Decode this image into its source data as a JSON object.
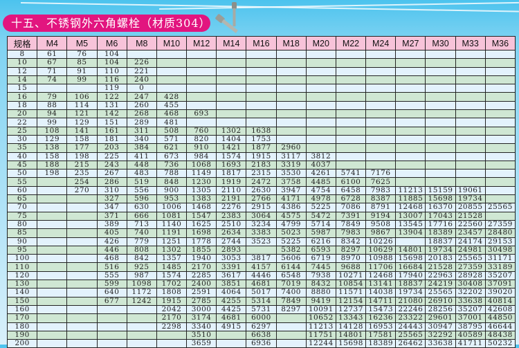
{
  "title": "十五、不锈钢外六角螺栓（材质304）",
  "colors": {
    "title_bg": "#e2157f",
    "header_bg": "#f7c3d9",
    "row_light": "#e3f2fc",
    "row_green": "#cfe7d3",
    "background": "#4cc3ee"
  },
  "table": {
    "headers": [
      "规格",
      "M4",
      "M5",
      "M6",
      "M8",
      "M10",
      "M12",
      "M14",
      "M16",
      "M18",
      "M20",
      "M22",
      "M24",
      "M27",
      "M30",
      "M33",
      "M36"
    ],
    "rows": [
      [
        "8",
        "61",
        "76",
        "104",
        "",
        "",
        "",
        "",
        "",
        "",
        "",
        "",
        "",
        "",
        "",
        "",
        ""
      ],
      [
        "10",
        "67",
        "85",
        "104",
        "226",
        "",
        "",
        "",
        "",
        "",
        "",
        "",
        "",
        "",
        "",
        "",
        ""
      ],
      [
        "12",
        "71",
        "91",
        "110",
        "221",
        "",
        "",
        "",
        "",
        "",
        "",
        "",
        "",
        "",
        "",
        "",
        ""
      ],
      [
        "14",
        "74",
        "99",
        "116",
        "240",
        "",
        "",
        "",
        "",
        "",
        "",
        "",
        "",
        "",
        "",
        "",
        ""
      ],
      [
        "15",
        "",
        "",
        "119",
        "0",
        "",
        "",
        "",
        "",
        "",
        "",
        "",
        "",
        "",
        "",
        "",
        ""
      ],
      [
        "16",
        "79",
        "106",
        "122",
        "247",
        "428",
        "",
        "",
        "",
        "",
        "",
        "",
        "",
        "",
        "",
        "",
        ""
      ],
      [
        "18",
        "88",
        "114",
        "131",
        "260",
        "455",
        "",
        "",
        "",
        "",
        "",
        "",
        "",
        "",
        "",
        "",
        ""
      ],
      [
        "20",
        "94",
        "121",
        "142",
        "268",
        "468",
        "693",
        "",
        "",
        "",
        "",
        "",
        "",
        "",
        "",
        "",
        ""
      ],
      [
        "22",
        "99",
        "129",
        "151",
        "289",
        "481",
        "",
        "",
        "",
        "",
        "",
        "",
        "",
        "",
        "",
        "",
        ""
      ],
      [
        "25",
        "108",
        "141",
        "161",
        "311",
        "508",
        "760",
        "1302",
        "1638",
        "",
        "",
        "",
        "",
        "",
        "",
        "",
        ""
      ],
      [
        "30",
        "129",
        "158",
        "181",
        "340",
        "571",
        "820",
        "1404",
        "1753",
        "",
        "",
        "",
        "",
        "",
        "",
        "",
        ""
      ],
      [
        "35",
        "138",
        "177",
        "203",
        "384",
        "621",
        "910",
        "1421",
        "1877",
        "2960",
        "",
        "",
        "",
        "",
        "",
        "",
        ""
      ],
      [
        "40",
        "158",
        "198",
        "225",
        "411",
        "673",
        "984",
        "1574",
        "1915",
        "3117",
        "3812",
        "",
        "",
        "",
        "",
        "",
        ""
      ],
      [
        "45",
        "188",
        "215",
        "243",
        "448",
        "736",
        "1068",
        "1693",
        "2183",
        "3319",
        "4037",
        "",
        "",
        "",
        "",
        "",
        ""
      ],
      [
        "50",
        "198",
        "235",
        "267",
        "483",
        "788",
        "1149",
        "1817",
        "2315",
        "3530",
        "4261",
        "5741",
        "7176",
        "",
        "",
        "",
        ""
      ],
      [
        "55",
        "",
        "254",
        "286",
        "519",
        "848",
        "1230",
        "1919",
        "2472",
        "3758",
        "4485",
        "6100",
        "7625",
        "",
        "",
        "",
        ""
      ],
      [
        "60",
        "",
        "270",
        "310",
        "556",
        "900",
        "1305",
        "2110",
        "2630",
        "3947",
        "4754",
        "6458",
        "7983",
        "11213",
        "15159",
        "19061",
        ""
      ],
      [
        "65",
        "",
        "",
        "327",
        "596",
        "953",
        "1383",
        "2191",
        "2766",
        "4171",
        "4978",
        "6728",
        "8387",
        "11885",
        "15698",
        "19734",
        ""
      ],
      [
        "70",
        "",
        "",
        "347",
        "630",
        "1006",
        "1468",
        "2276",
        "2915",
        "4386",
        "5225",
        "7086",
        "8791",
        "12468",
        "16370",
        "20855",
        "25565"
      ],
      [
        "75",
        "",
        "",
        "371",
        "666",
        "1081",
        "1547",
        "2383",
        "3064",
        "4575",
        "5472",
        "7391",
        "9194",
        "13007",
        "17043",
        "21528",
        ""
      ],
      [
        "80",
        "",
        "",
        "389",
        "713",
        "1140",
        "1625",
        "2510",
        "3234",
        "4799",
        "5714",
        "7849",
        "9508",
        "13545",
        "17716",
        "22560",
        "27359"
      ],
      [
        "85",
        "",
        "",
        "405",
        "740",
        "1191",
        "1698",
        "2634",
        "3383",
        "5023",
        "5987",
        "7983",
        "9867",
        "13904",
        "18389",
        "23457",
        "28480"
      ],
      [
        "90",
        "",
        "",
        "426",
        "779",
        "1251",
        "1778",
        "2744",
        "3523",
        "5225",
        "6216",
        "8342",
        "10226",
        "",
        "18837",
        "24174",
        "29153"
      ],
      [
        "95",
        "",
        "",
        "446",
        "808",
        "1302",
        "1855",
        "2893",
        "",
        "5382",
        "6593",
        "8297",
        "10629",
        "14801",
        "19734",
        "24981",
        "30498"
      ],
      [
        "100",
        "",
        "",
        "468",
        "842",
        "1357",
        "1940",
        "3053",
        "3817",
        "5606",
        "6719",
        "8970",
        "10988",
        "15698",
        "20183",
        "25565",
        "31171"
      ],
      [
        "110",
        "",
        "",
        "516",
        "925",
        "1485",
        "2170",
        "3391",
        "4157",
        "6144",
        "7445",
        "9688",
        "11706",
        "16684",
        "21528",
        "27359",
        "33189"
      ],
      [
        "120",
        "",
        "",
        "555",
        "987",
        "1574",
        "2285",
        "3617",
        "4446",
        "6548",
        "7938",
        "10271",
        "12468",
        "17940",
        "22963",
        "28928",
        "35207"
      ],
      [
        "130",
        "",
        "",
        "599",
        "1098",
        "1702",
        "2400",
        "3851",
        "4681",
        "7019",
        "8432",
        "10854",
        "13141",
        "18837",
        "24219",
        "30408",
        "37091"
      ],
      [
        "140",
        "",
        "",
        "640",
        "1172",
        "1808",
        "2591",
        "4064",
        "5017",
        "7400",
        "8880",
        "11571",
        "14038",
        "19734",
        "25565",
        "32202",
        "39020"
      ],
      [
        "150",
        "",
        "",
        "677",
        "1242",
        "1915",
        "2785",
        "4255",
        "5314",
        "7849",
        "9419",
        "12154",
        "14711",
        "21080",
        "26910",
        "33638",
        "40814"
      ],
      [
        "160",
        "",
        "",
        "",
        "",
        "2042",
        "3000",
        "4425",
        "5731",
        "8297",
        "10091",
        "12737",
        "15473",
        "22246",
        "28256",
        "35207",
        "42608"
      ],
      [
        "170",
        "",
        "",
        "",
        "",
        "2170",
        "3174",
        "4681",
        "6000",
        "",
        "10652",
        "13343",
        "16236",
        "23322",
        "29601",
        "37001",
        "44850"
      ],
      [
        "180",
        "",
        "",
        "",
        "",
        "2298",
        "3340",
        "4915",
        "6297",
        "",
        "11213",
        "14128",
        "16953",
        "24443",
        "30947",
        "38795",
        "46644"
      ],
      [
        "190",
        "",
        "",
        "",
        "",
        "",
        "3510",
        "",
        "6638",
        "",
        "11751",
        "14801",
        "17581",
        "25565",
        "32292",
        "40589",
        "48438"
      ],
      [
        "200",
        "",
        "",
        "",
        "",
        "",
        "3659",
        "",
        "6936",
        "",
        "12244",
        "15698",
        "18389",
        "26462",
        "33638",
        "41711",
        "50232"
      ]
    ]
  }
}
